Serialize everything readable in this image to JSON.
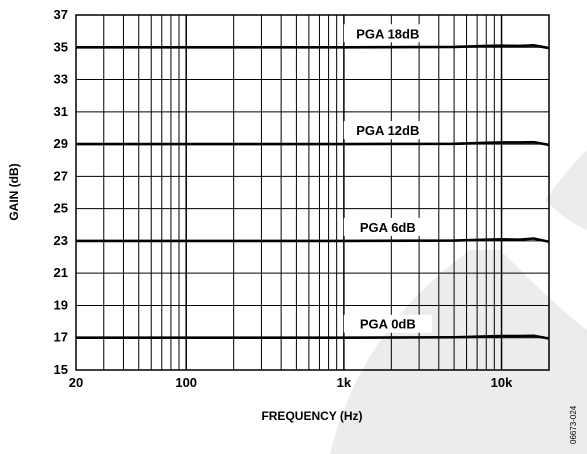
{
  "chart_data": {
    "type": "line",
    "x_scale": "log",
    "xlabel": "FREQUENCY (Hz)",
    "ylabel": "GAIN (dB)",
    "xlim": [
      20,
      20000
    ],
    "ylim": [
      15,
      37
    ],
    "x_ticks": [
      {
        "value": 20,
        "label": "20"
      },
      {
        "value": 100,
        "label": "100"
      },
      {
        "value": 1000,
        "label": "1k"
      },
      {
        "value": 10000,
        "label": "10k"
      }
    ],
    "y_ticks": [
      15,
      17,
      19,
      21,
      23,
      25,
      27,
      29,
      31,
      33,
      35,
      37
    ],
    "grid": true,
    "series": [
      {
        "name": "PGA 18dB",
        "x": [
          20,
          100,
          1000,
          5000,
          8000,
          10000,
          13000,
          16000,
          20000
        ],
        "y": [
          35.0,
          35.0,
          35.0,
          35.02,
          35.08,
          35.1,
          35.08,
          35.12,
          34.95
        ]
      },
      {
        "name": "PGA 12dB",
        "x": [
          20,
          100,
          1000,
          5000,
          8000,
          10000,
          13000,
          16000,
          20000
        ],
        "y": [
          29.0,
          29.0,
          29.0,
          29.02,
          29.08,
          29.1,
          29.1,
          29.12,
          28.95
        ]
      },
      {
        "name": "PGA 6dB",
        "x": [
          20,
          100,
          1000,
          5000,
          8000,
          10000,
          13000,
          16000,
          20000
        ],
        "y": [
          23.0,
          23.0,
          23.0,
          23.02,
          23.08,
          23.1,
          23.08,
          23.15,
          22.95
        ]
      },
      {
        "name": "PGA 0dB",
        "x": [
          20,
          100,
          1000,
          5000,
          8000,
          10000,
          13000,
          16000,
          20000
        ],
        "y": [
          17.0,
          17.0,
          17.0,
          17.03,
          17.08,
          17.1,
          17.1,
          17.12,
          16.95
        ]
      }
    ],
    "label_anchor_x": 1900,
    "figure_id": "06673-024",
    "colors": {
      "line": "#000000",
      "grid": "#000000",
      "background": "#ffffff",
      "watermark": "#ececec"
    }
  }
}
